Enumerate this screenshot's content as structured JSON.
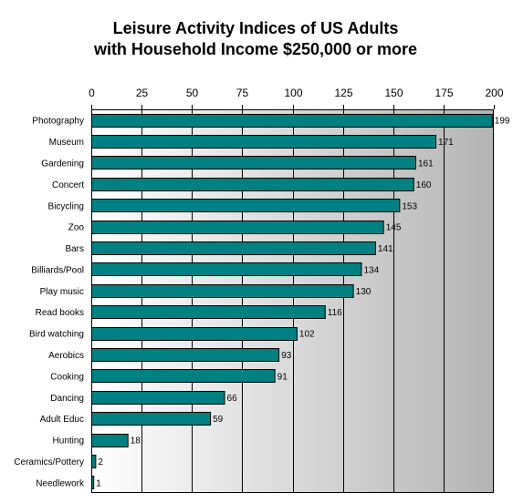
{
  "chart_data": {
    "type": "bar",
    "orientation": "horizontal",
    "title_lines": [
      "Leisure Activity Indices of US Adults",
      "with Household Income $250,000 or more"
    ],
    "xlabel": "",
    "ylabel": "",
    "xlim": [
      0,
      200
    ],
    "x_ticks": [
      0,
      25,
      50,
      75,
      100,
      125,
      150,
      175,
      200
    ],
    "x_tick_labels": [
      "0",
      "25",
      "50",
      "75",
      "100",
      "125",
      "150",
      "175",
      "200"
    ],
    "x_axis_position": "top",
    "grid": true,
    "legend": "none",
    "categories": [
      "Photography",
      "Museum",
      "Gardening",
      "Concert",
      "Bicycling",
      "Zoo",
      "Bars",
      "Billiards/Pool",
      "Play music",
      "Read books",
      "Bird watching",
      "Aerobics",
      "Cooking",
      "Dancing",
      "Adult Educ",
      "Hunting",
      "Ceramics/Pottery",
      "Needlework"
    ],
    "values": [
      199,
      171,
      161,
      160,
      153,
      145,
      141,
      134,
      130,
      116,
      102,
      93,
      91,
      66,
      59,
      18,
      2,
      1
    ],
    "value_labels": [
      "199",
      "171",
      "161",
      "160",
      "153",
      "145",
      "141",
      "134",
      "130",
      "116",
      "102",
      "93",
      "91",
      "66",
      "59",
      "18",
      "2",
      "1"
    ],
    "colors": {
      "bar_fill": "#008080",
      "bar_stroke": "#000000",
      "background_start": "#ffffff",
      "background_end": "#b4b4b4",
      "gridline": "#000000"
    }
  }
}
